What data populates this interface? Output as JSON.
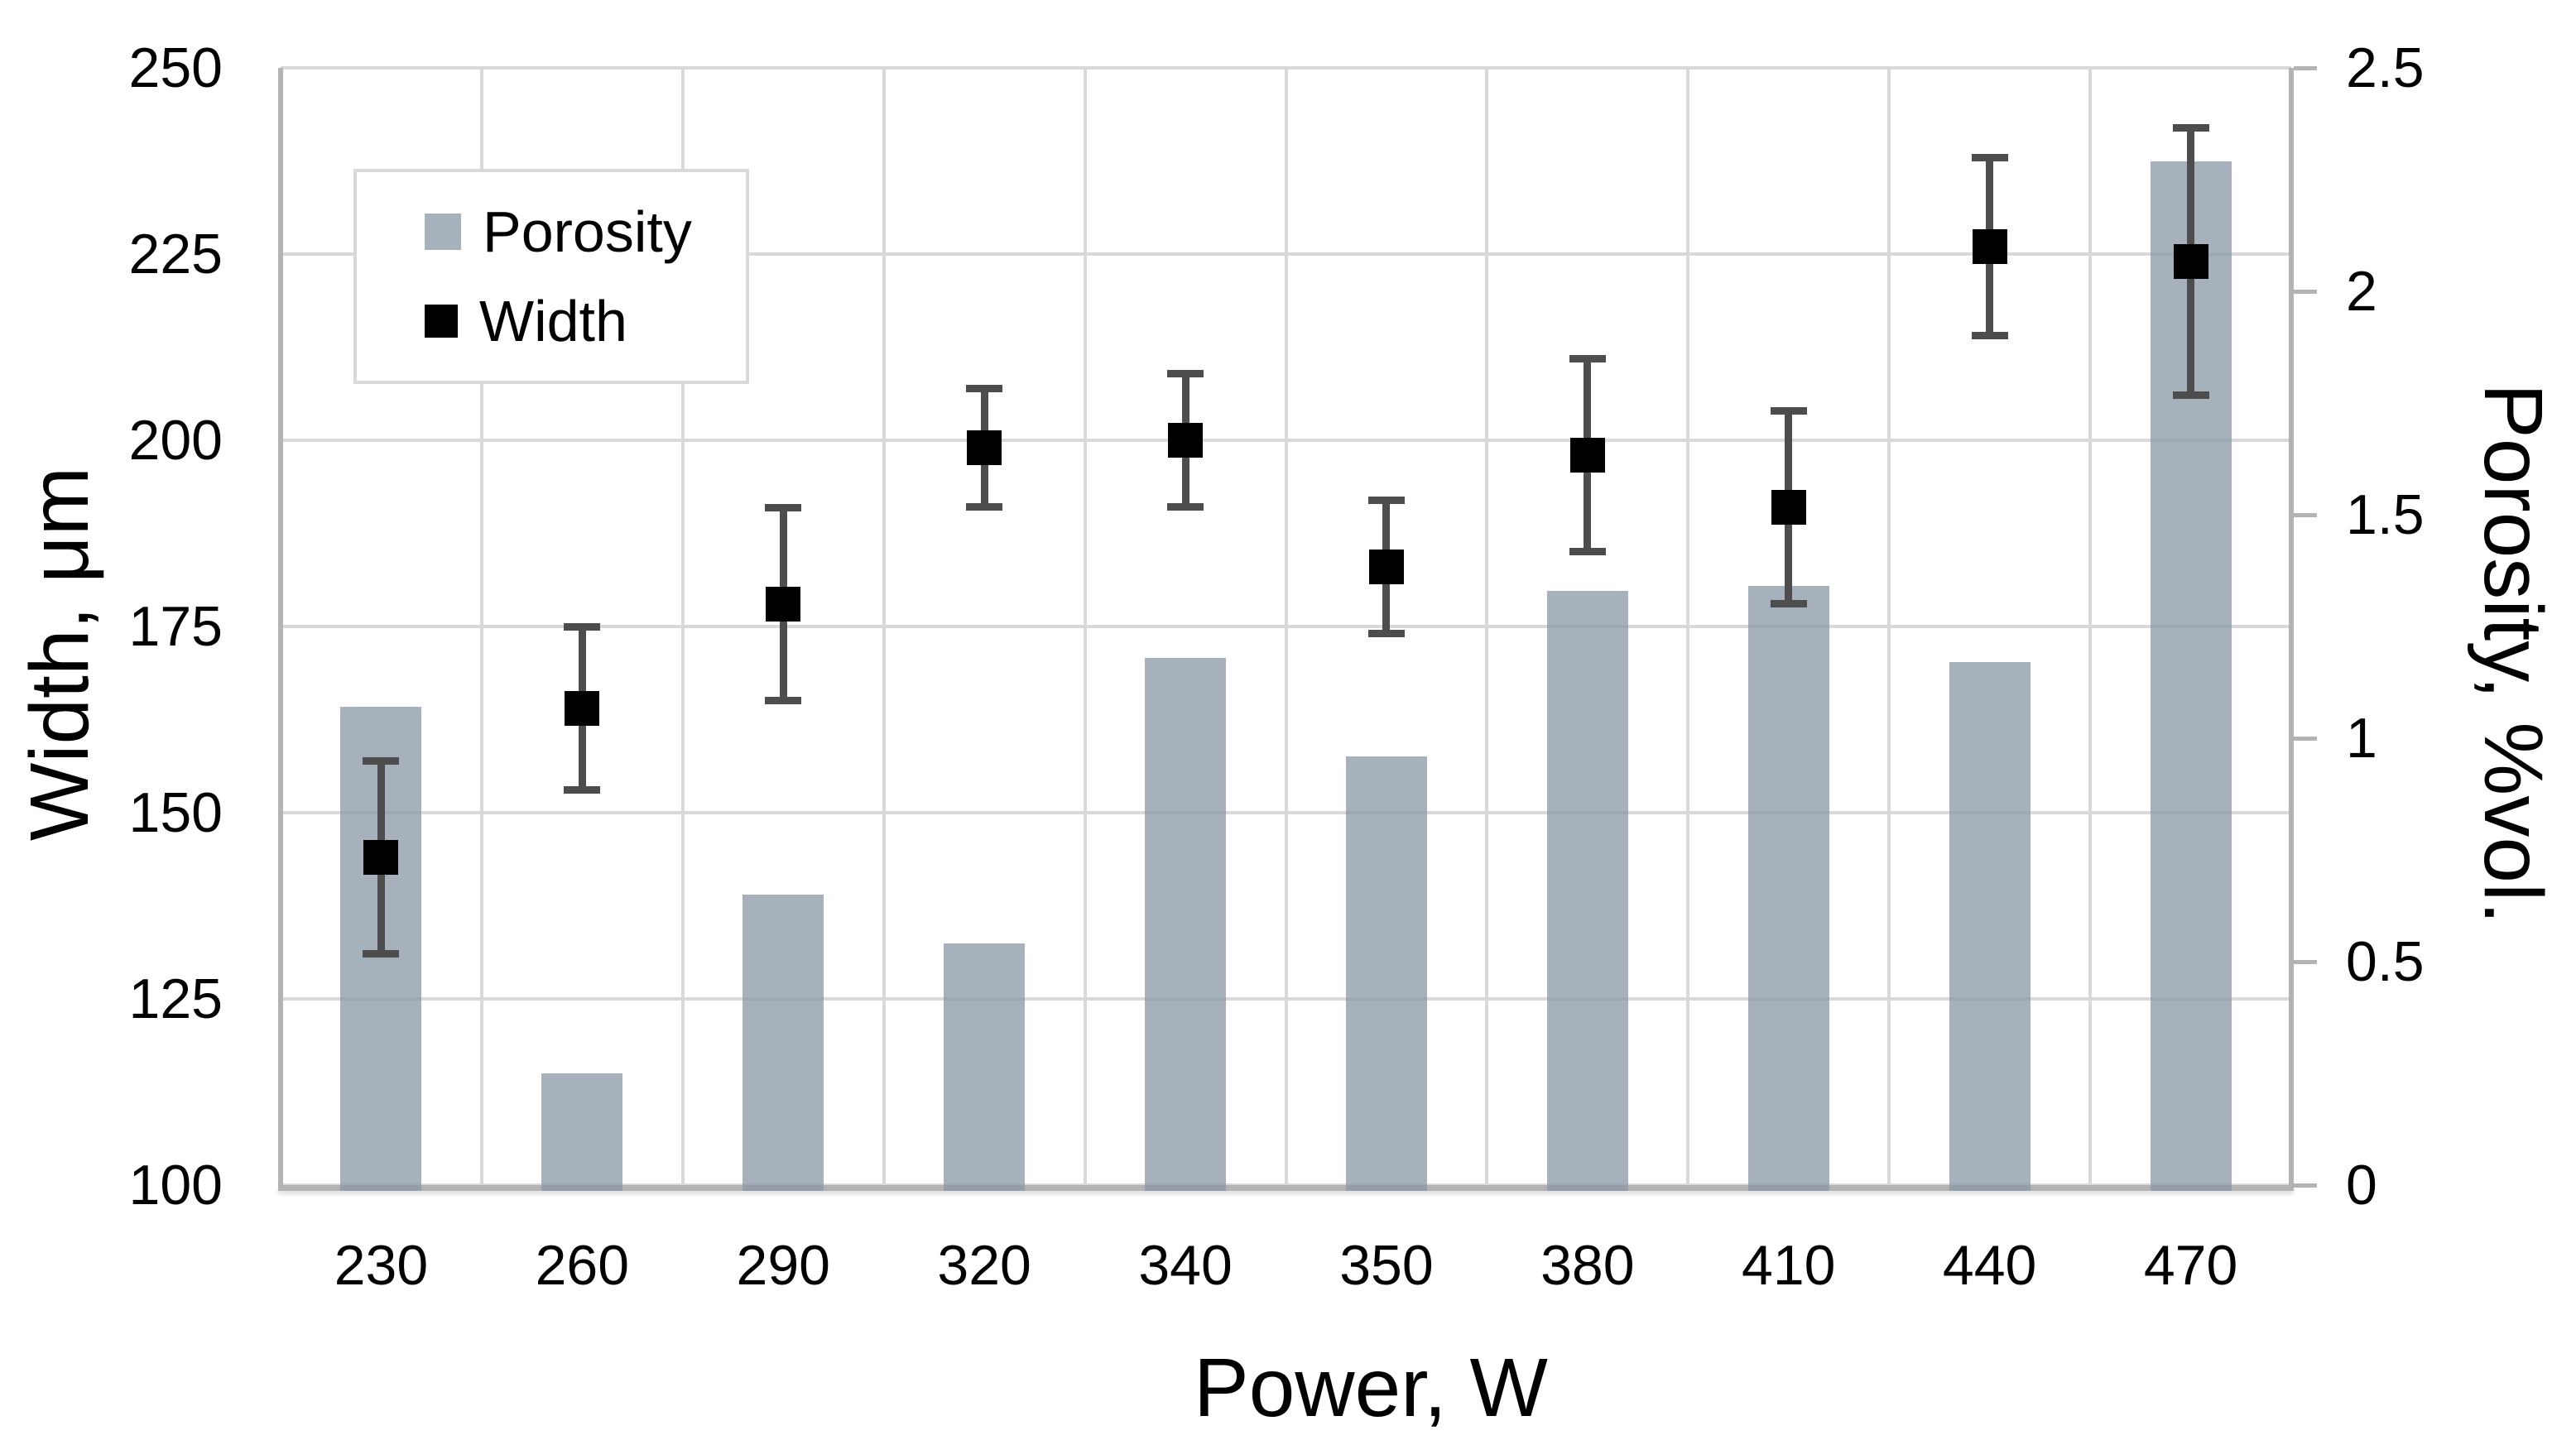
{
  "chart_data": {
    "type": "combo",
    "categories": [
      "230",
      "260",
      "290",
      "320",
      "340",
      "350",
      "380",
      "410",
      "440",
      "470"
    ],
    "x_axis": {
      "title": "Power, W"
    },
    "left_axis": {
      "title": "Width, μm",
      "min": 100,
      "max": 250,
      "step": 25,
      "tick_labels": [
        "100",
        "125",
        "150",
        "175",
        "200",
        "225",
        "250"
      ]
    },
    "right_axis": {
      "title": "Porosity, %vol.",
      "min": 0,
      "max": 2.5,
      "step": 0.5,
      "tick_labels": [
        "0",
        "0.5",
        "1",
        "1.5",
        "2",
        "2.5"
      ]
    },
    "series": [
      {
        "name": "Porosity",
        "type": "bar",
        "axis": "right",
        "color": "rgba(138,151,166,0.75)",
        "values": [
          1.07,
          0.25,
          0.65,
          0.54,
          1.18,
          0.96,
          1.33,
          1.34,
          1.17,
          2.29
        ]
      },
      {
        "name": "Width",
        "type": "scatter-with-error-bars",
        "axis": "left",
        "marker_color": "#000000",
        "error_color": "#4d4d4d",
        "values": [
          144,
          164,
          178,
          199,
          200,
          183,
          198,
          191,
          226,
          224
        ],
        "errors": [
          13,
          11,
          13,
          8,
          9,
          9,
          13,
          13,
          12,
          18
        ]
      }
    ],
    "legend": {
      "position": "top-left",
      "entries": [
        "Porosity",
        "Width"
      ]
    },
    "grid": true,
    "colors": {
      "gridline": "#d9d9d9",
      "axis_line": "#b3b3b3",
      "bar_fill": "rgba(138,151,166,0.75)",
      "error_bar": "#4d4d4d",
      "marker": "#000000",
      "text": "#000000",
      "background": "#ffffff"
    }
  }
}
